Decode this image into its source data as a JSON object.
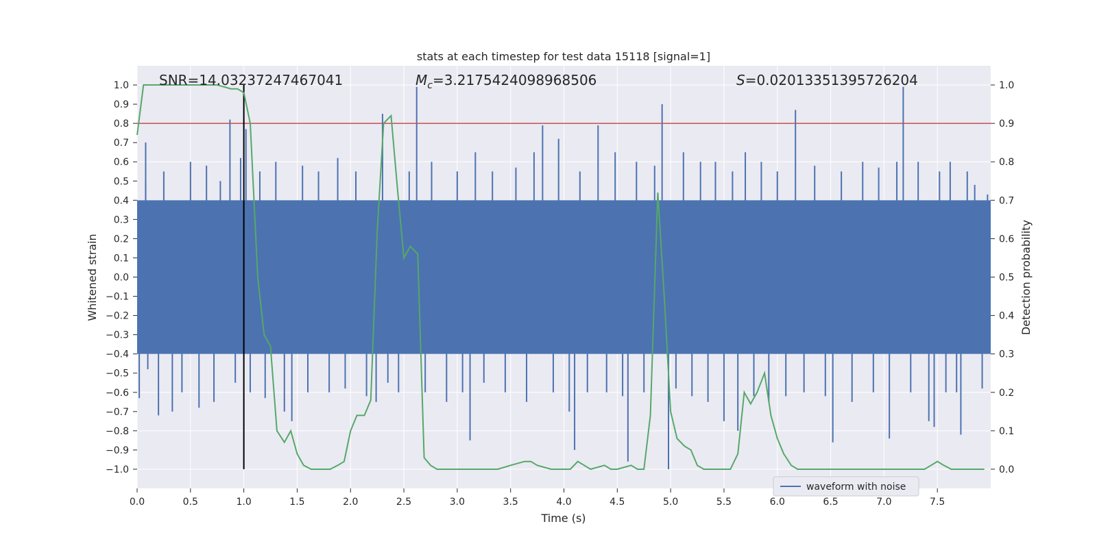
{
  "chart_data": {
    "type": "line",
    "title": "stats at each timestep for test data 15118 [signal=1]",
    "xlabel": "Time (s)",
    "ylabel": "Whitened strain",
    "ylabel_right": "Detection probability",
    "xlim": [
      0,
      8
    ],
    "ylim": [
      -1.1,
      1.1
    ],
    "ylim_right": [
      -0.05,
      1.05
    ],
    "x_ticks": [
      "0.0",
      "0.5",
      "1.0",
      "1.5",
      "2.0",
      "2.5",
      "3.0",
      "3.5",
      "4.0",
      "4.5",
      "5.0",
      "5.5",
      "6.0",
      "6.5",
      "7.0",
      "7.5"
    ],
    "y_ticks": [
      "1.0",
      "0.9",
      "0.8",
      "0.7",
      "0.6",
      "0.5",
      "0.4",
      "0.3",
      "0.2",
      "0.1",
      "0.0",
      "−0.1",
      "−0.2",
      "−0.3",
      "−0.4",
      "−0.5",
      "−0.6",
      "−0.7",
      "−0.8",
      "−0.9",
      "−1.0"
    ],
    "y_right_ticks": [
      "1.0",
      "0.9",
      "0.8",
      "0.7",
      "0.6",
      "0.5",
      "0.4",
      "0.3",
      "0.2",
      "0.1",
      "0.0"
    ],
    "grid": true,
    "legend_position": "lower-right",
    "annotations": {
      "snr": "SNR=14.03237247467041",
      "mc_symbol": "M",
      "mc_sub": "c",
      "mc_value": "=3.2175424098968506",
      "s_symbol": "S",
      "s_value": "=0.02013351395726204"
    },
    "threshold": {
      "axis": "right",
      "value": 0.9,
      "color": "#c44e52"
    },
    "marker_line": {
      "x": 1.0,
      "y_from": -1.0,
      "y_to": 1.0,
      "color": "#000000"
    },
    "series": [
      {
        "name": "waveform with noise",
        "axis": "left",
        "color": "#4c72b0",
        "band_envelope": {
          "x": [
            0,
            8
          ],
          "upper": 0.4,
          "lower": -0.4
        },
        "spikes": [
          [
            0.02,
            -0.63
          ],
          [
            0.08,
            0.5
          ],
          [
            0.1,
            -0.48
          ],
          [
            0.08,
            0.7
          ],
          [
            0.2,
            -0.72
          ],
          [
            0.25,
            0.55
          ],
          [
            0.33,
            -0.7
          ],
          [
            0.42,
            -0.6
          ],
          [
            0.5,
            0.6
          ],
          [
            0.58,
            -0.68
          ],
          [
            0.65,
            0.58
          ],
          [
            0.72,
            -0.65
          ],
          [
            0.78,
            0.5
          ],
          [
            0.87,
            0.82
          ],
          [
            0.92,
            -0.55
          ],
          [
            0.97,
            0.62
          ],
          [
            1.02,
            0.77
          ],
          [
            1.06,
            -0.6
          ],
          [
            1.15,
            0.55
          ],
          [
            1.2,
            -0.63
          ],
          [
            1.3,
            0.6
          ],
          [
            1.38,
            -0.7
          ],
          [
            1.45,
            -0.75
          ],
          [
            1.55,
            0.58
          ],
          [
            1.6,
            -0.6
          ],
          [
            1.7,
            0.55
          ],
          [
            1.8,
            -0.6
          ],
          [
            1.88,
            0.62
          ],
          [
            1.95,
            -0.58
          ],
          [
            2.05,
            0.55
          ],
          [
            2.15,
            -0.62
          ],
          [
            2.24,
            -0.65
          ],
          [
            2.3,
            0.85
          ],
          [
            2.35,
            -0.55
          ],
          [
            2.45,
            -0.6
          ],
          [
            2.55,
            0.55
          ],
          [
            2.62,
            0.99
          ],
          [
            2.7,
            -0.6
          ],
          [
            2.76,
            0.6
          ],
          [
            2.9,
            -0.65
          ],
          [
            3.0,
            0.55
          ],
          [
            3.05,
            -0.6
          ],
          [
            3.12,
            -0.85
          ],
          [
            3.17,
            0.65
          ],
          [
            3.25,
            -0.55
          ],
          [
            3.33,
            0.55
          ],
          [
            3.45,
            -0.6
          ],
          [
            3.55,
            0.57
          ],
          [
            3.65,
            -0.65
          ],
          [
            3.72,
            0.65
          ],
          [
            3.8,
            0.79
          ],
          [
            3.9,
            -0.6
          ],
          [
            3.95,
            0.72
          ],
          [
            4.05,
            -0.7
          ],
          [
            4.1,
            -0.9
          ],
          [
            4.15,
            0.55
          ],
          [
            4.22,
            -0.6
          ],
          [
            4.32,
            0.79
          ],
          [
            4.4,
            -0.6
          ],
          [
            4.48,
            0.65
          ],
          [
            4.55,
            -0.62
          ],
          [
            4.6,
            -0.96
          ],
          [
            4.68,
            0.6
          ],
          [
            4.75,
            -0.6
          ],
          [
            4.85,
            0.58
          ],
          [
            4.92,
            0.9
          ],
          [
            4.98,
            -1.0
          ],
          [
            5.05,
            -0.58
          ],
          [
            5.12,
            0.65
          ],
          [
            5.2,
            -0.62
          ],
          [
            5.28,
            0.6
          ],
          [
            5.35,
            -0.65
          ],
          [
            5.42,
            0.6
          ],
          [
            5.5,
            -0.75
          ],
          [
            5.58,
            0.55
          ],
          [
            5.63,
            -0.8
          ],
          [
            5.7,
            0.65
          ],
          [
            5.78,
            -0.62
          ],
          [
            5.85,
            0.6
          ],
          [
            5.92,
            -0.65
          ],
          [
            6.0,
            0.55
          ],
          [
            6.08,
            -0.62
          ],
          [
            6.17,
            0.87
          ],
          [
            6.25,
            -0.6
          ],
          [
            6.35,
            0.58
          ],
          [
            6.45,
            -0.62
          ],
          [
            6.52,
            -0.86
          ],
          [
            6.6,
            0.55
          ],
          [
            6.7,
            -0.65
          ],
          [
            6.8,
            0.6
          ],
          [
            6.9,
            -0.6
          ],
          [
            6.95,
            0.57
          ],
          [
            7.05,
            -0.84
          ],
          [
            7.12,
            0.6
          ],
          [
            7.18,
            0.99
          ],
          [
            7.25,
            -0.6
          ],
          [
            7.32,
            0.6
          ],
          [
            7.42,
            -0.75
          ],
          [
            7.47,
            -0.78
          ],
          [
            7.52,
            0.55
          ],
          [
            7.58,
            -0.6
          ],
          [
            7.62,
            0.6
          ],
          [
            7.68,
            -0.6
          ],
          [
            7.72,
            -0.82
          ],
          [
            7.78,
            0.55
          ],
          [
            7.85,
            0.48
          ],
          [
            7.92,
            -0.58
          ],
          [
            7.97,
            0.43
          ]
        ]
      },
      {
        "name": "detection probability",
        "axis": "right",
        "color": "#55a868",
        "x": [
          0.0,
          0.06,
          0.12,
          0.25,
          0.5,
          0.75,
          0.88,
          0.94,
          1.0,
          1.06,
          1.13,
          1.19,
          1.25,
          1.31,
          1.38,
          1.44,
          1.5,
          1.56,
          1.63,
          1.75,
          1.81,
          1.88,
          1.94,
          2.0,
          2.06,
          2.13,
          2.19,
          2.25,
          2.31,
          2.38,
          2.44,
          2.5,
          2.56,
          2.63,
          2.69,
          2.75,
          2.81,
          2.88,
          3.0,
          3.13,
          3.25,
          3.38,
          3.5,
          3.63,
          3.69,
          3.75,
          3.88,
          3.94,
          4.0,
          4.06,
          4.13,
          4.19,
          4.25,
          4.38,
          4.44,
          4.5,
          4.63,
          4.69,
          4.75,
          4.81,
          4.88,
          4.94,
          5.0,
          5.06,
          5.13,
          5.19,
          5.25,
          5.31,
          5.44,
          5.56,
          5.63,
          5.69,
          5.75,
          5.81,
          5.88,
          5.94,
          6.0,
          6.06,
          6.13,
          6.19,
          6.25,
          6.5,
          7.0,
          7.25,
          7.38,
          7.44,
          7.5,
          7.56,
          7.63,
          7.75,
          7.88,
          7.94
        ],
        "values": [
          0.87,
          1.0,
          1.0,
          1.0,
          1.0,
          1.0,
          0.99,
          0.99,
          0.98,
          0.9,
          0.5,
          0.35,
          0.32,
          0.1,
          0.07,
          0.1,
          0.04,
          0.01,
          0.0,
          0.0,
          0.0,
          0.01,
          0.02,
          0.1,
          0.14,
          0.14,
          0.18,
          0.62,
          0.9,
          0.92,
          0.73,
          0.55,
          0.58,
          0.56,
          0.03,
          0.01,
          0.0,
          0.0,
          0.0,
          0.0,
          0.0,
          0.0,
          0.01,
          0.02,
          0.02,
          0.01,
          0.0,
          0.0,
          0.0,
          0.0,
          0.02,
          0.01,
          0.0,
          0.01,
          0.0,
          0.0,
          0.01,
          0.0,
          0.0,
          0.14,
          0.72,
          0.45,
          0.15,
          0.08,
          0.06,
          0.05,
          0.01,
          0.0,
          0.0,
          0.0,
          0.04,
          0.2,
          0.17,
          0.2,
          0.25,
          0.14,
          0.08,
          0.04,
          0.01,
          0.0,
          0.0,
          0.0,
          0.0,
          0.0,
          0.0,
          0.01,
          0.02,
          0.01,
          0.0,
          0.0,
          0.0,
          0.0
        ]
      }
    ]
  }
}
